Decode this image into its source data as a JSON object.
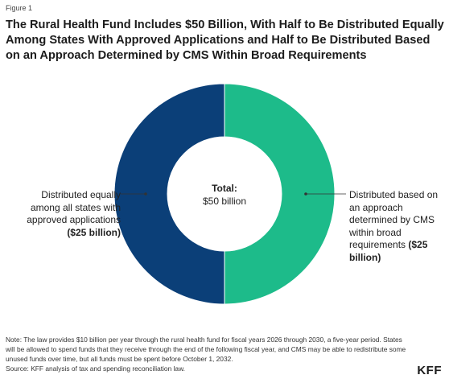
{
  "figure_label": "Figure 1",
  "title": "The Rural Health Fund Includes $50 Billion, With Half to Be Distributed Equally Among States With Approved Applications and Half to Be Distributed Based on an Approach Determined by CMS Within Broad Requirements",
  "center": {
    "total_label": "Total:",
    "total_value": "$50 billion"
  },
  "slice_labels": {
    "left_text": "Distributed equally among all states with approved applications ",
    "left_value": "($25 billion)",
    "right_text": "Distributed based on an approach determined by CMS within broad requirements ",
    "right_value": "($25 billion)"
  },
  "footer": {
    "note": "Note: The law provides $10 billion per year through the rural health fund for fiscal years 2026 through 2030, a five-year period. States will be allowed to spend funds that they receive through the end of the following fiscal year, and CMS may be able to redistribute some unused funds over time, but all funds must be spent before October 1, 2032.",
    "source": "Source: KFF analysis of tax and spending reconciliation law."
  },
  "logo": "KFF",
  "chart_data": {
    "type": "pie",
    "donut": true,
    "title": "The Rural Health Fund Includes $50 Billion, With Half to Be Distributed Equally Among States With Approved Applications and Half to Be Distributed Based on an Approach Determined by CMS Within Broad Requirements",
    "units": "billion dollars",
    "total": 50,
    "slices": [
      {
        "label": "Distributed based on an approach determined by CMS within broad requirements",
        "value": 25,
        "color": "#1dbb8a"
      },
      {
        "label": "Distributed equally among all states with approved applications",
        "value": 25,
        "color": "#0b3f78"
      }
    ]
  }
}
